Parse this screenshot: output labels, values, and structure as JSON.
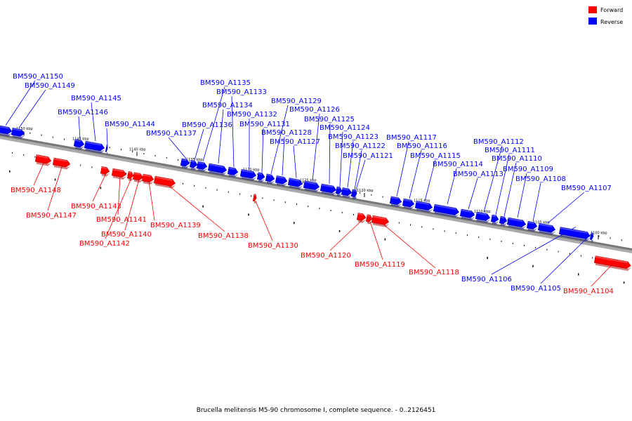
{
  "legend": [
    {
      "label": "Forward",
      "color": "#ff0000"
    },
    {
      "label": "Reverse",
      "color": "#0000ff"
    }
  ],
  "caption": "Brucella melitensis M5-90 chromosome I, complete sequence. - 0..2126451",
  "axis": {
    "start_kbp": 1152,
    "end_kbp": 1098
  },
  "ticks": [
    "1150 kbp",
    "1145 kbp",
    "1140 kbp",
    "1135 kbp",
    "1130 kbp",
    "1125 kbp",
    "1120 kbp",
    "1115 kbp",
    "1110 kbp",
    "1105 kbp",
    "1100 kbp"
  ],
  "genes": [
    {
      "name": "BM590_A1150",
      "strand": "reverse"
    },
    {
      "name": "BM590_A1149",
      "strand": "reverse"
    },
    {
      "name": "BM590_A1148",
      "strand": "forward"
    },
    {
      "name": "BM590_A1147",
      "strand": "forward"
    },
    {
      "name": "BM590_A1146",
      "strand": "reverse"
    },
    {
      "name": "BM590_A1145",
      "strand": "reverse"
    },
    {
      "name": "BM590_A1144",
      "strand": "reverse"
    },
    {
      "name": "BM590_A1143",
      "strand": "forward"
    },
    {
      "name": "BM590_A1142",
      "strand": "forward"
    },
    {
      "name": "BM590_A1141",
      "strand": "forward"
    },
    {
      "name": "BM590_A1140",
      "strand": "forward"
    },
    {
      "name": "BM590_A1139",
      "strand": "forward"
    },
    {
      "name": "BM590_A1138",
      "strand": "forward"
    },
    {
      "name": "BM590_A1137",
      "strand": "reverse"
    },
    {
      "name": "BM590_A1136",
      "strand": "reverse"
    },
    {
      "name": "BM590_A1135",
      "strand": "reverse"
    },
    {
      "name": "BM590_A1134",
      "strand": "reverse"
    },
    {
      "name": "BM590_A1133",
      "strand": "reverse"
    },
    {
      "name": "BM590_A1132",
      "strand": "reverse"
    },
    {
      "name": "BM590_A1131",
      "strand": "reverse"
    },
    {
      "name": "BM590_A1130",
      "strand": "forward"
    },
    {
      "name": "BM590_A1129",
      "strand": "reverse"
    },
    {
      "name": "BM590_A1128",
      "strand": "reverse"
    },
    {
      "name": "BM590_A1127",
      "strand": "reverse"
    },
    {
      "name": "BM590_A1126",
      "strand": "reverse"
    },
    {
      "name": "BM590_A1125",
      "strand": "reverse"
    },
    {
      "name": "BM590_A1124",
      "strand": "reverse"
    },
    {
      "name": "BM590_A1123",
      "strand": "reverse"
    },
    {
      "name": "BM590_A1122",
      "strand": "reverse"
    },
    {
      "name": "BM590_A1121",
      "strand": "reverse"
    },
    {
      "name": "BM590_A1120",
      "strand": "forward"
    },
    {
      "name": "BM590_A1119",
      "strand": "forward"
    },
    {
      "name": "BM590_A1118",
      "strand": "forward"
    },
    {
      "name": "BM590_A1117",
      "strand": "reverse"
    },
    {
      "name": "BM590_A1116",
      "strand": "reverse"
    },
    {
      "name": "BM590_A1115",
      "strand": "reverse"
    },
    {
      "name": "BM590_A1114",
      "strand": "reverse"
    },
    {
      "name": "BM590_A1113",
      "strand": "reverse"
    },
    {
      "name": "BM590_A1112",
      "strand": "reverse"
    },
    {
      "name": "BM590_A1111",
      "strand": "reverse"
    },
    {
      "name": "BM590_A1110",
      "strand": "reverse"
    },
    {
      "name": "BM590_A1109",
      "strand": "reverse"
    },
    {
      "name": "BM590_A1108",
      "strand": "reverse"
    },
    {
      "name": "BM590_A1107",
      "strand": "reverse"
    },
    {
      "name": "BM590_A1106",
      "strand": "reverse"
    },
    {
      "name": "BM590_A1105",
      "strand": "reverse"
    },
    {
      "name": "BM590_A1104",
      "strand": "forward"
    }
  ]
}
